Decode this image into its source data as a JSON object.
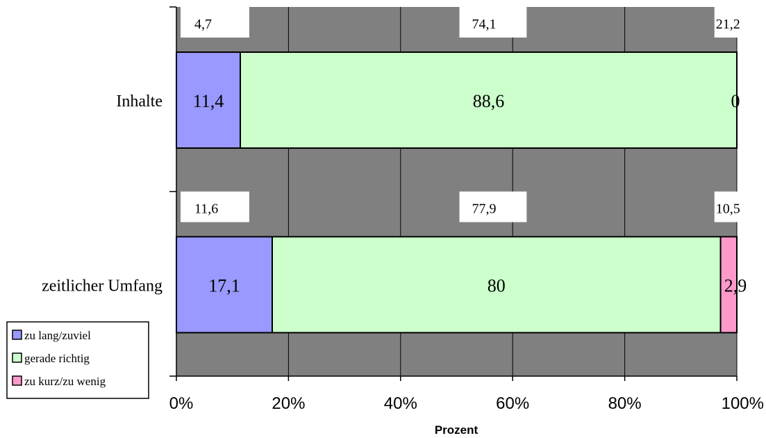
{
  "chart_data": {
    "type": "bar",
    "orientation": "horizontal",
    "stacked": true,
    "normalized_percent": true,
    "categories": [
      "Inhalte",
      "zeitlicher Umfang"
    ],
    "series": [
      {
        "name": "zu lang/zuviel",
        "color": "#9999ff",
        "values": [
          11.4,
          17.1
        ],
        "labels": [
          "11,4",
          "17,1"
        ]
      },
      {
        "name": "gerade richtig",
        "color": "#ccffcc",
        "values": [
          88.6,
          80
        ],
        "labels": [
          "88,6",
          "80"
        ]
      },
      {
        "name": "zu kurz/zu wenig",
        "color": "#ff99cc",
        "values": [
          0,
          2.9
        ],
        "labels": [
          "0",
          "2,9"
        ]
      }
    ],
    "top_annotations": [
      [
        "4,7",
        "74,1",
        "21,2"
      ],
      [
        "11,6",
        "77,9",
        "10,5"
      ]
    ],
    "xlabel": "Prozent",
    "ylabel": "",
    "xlim": [
      0,
      100
    ],
    "xticks": [
      0,
      20,
      40,
      60,
      80,
      100
    ],
    "xtick_labels": [
      "0%",
      "20%",
      "40%",
      "60%",
      "80%",
      "100%"
    ],
    "grid": true,
    "legend_position": "bottom-left",
    "plot_background": "#808080"
  }
}
